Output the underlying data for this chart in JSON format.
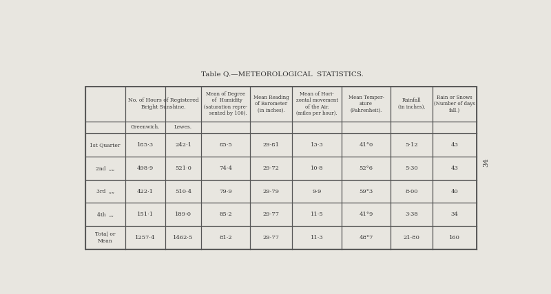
{
  "title_part1": "T",
  "title_part2": "ABLE",
  "title_rest": " Q.—METEOROLOGICAL  STATISTICS.",
  "bg_color": "#e8e6e0",
  "table_bg": "#e8e6e0",
  "border_color": "#555555",
  "text_color": "#333333",
  "page_number": "34",
  "sunshine_header": "No. of Hours of Registered\nBright Sunshine.",
  "humidity_header": "Mean of Degree\n  of  Humidity\n(saturation repre-\n   sented by 100).",
  "barometer_header": "Mean Reading\nof Barometer\n(in inches).",
  "horiz_header": "Mean of Hori-\nzontal movement\nof the Air.\n(miles per hour).",
  "temp_header": "Mean Temper-\nature\n(Fahrenheit).",
  "rainfall_header": "Rainfall\n(in inches).",
  "rainsnow_header": "Rain or Snows\n(Number of days\nfall.)",
  "greenwich_label": "Greenwich.",
  "lewes_label": "Lewes.",
  "row_labels": [
    "1st Quarter",
    "2nd  „„",
    "3rd  „„",
    "4th  „,",
    "Totaḹ or\n Mean"
  ],
  "data": [
    [
      "185·3",
      "242·1",
      "85·5",
      "29·81",
      "13·3",
      "41°0",
      "5·12",
      "43"
    ],
    [
      "498·9",
      "521·0",
      "74·4",
      "29·72",
      "10·8",
      "52°6",
      "5·30",
      "43"
    ],
    [
      "422·1",
      "510·4",
      "79·9",
      "29·79",
      "9·9",
      "59°3",
      "8·00",
      "40"
    ],
    [
      "151·1",
      "189·0",
      "85·2",
      "29·77",
      "11·5",
      "41°9",
      "3·38",
      "34"
    ],
    [
      "1257·4",
      "1462·5",
      "81·2",
      "29·77",
      "11·3",
      "48°7",
      "21·80",
      "160"
    ]
  ],
  "figsize": [
    8.0,
    4.28
  ],
  "dpi": 100
}
